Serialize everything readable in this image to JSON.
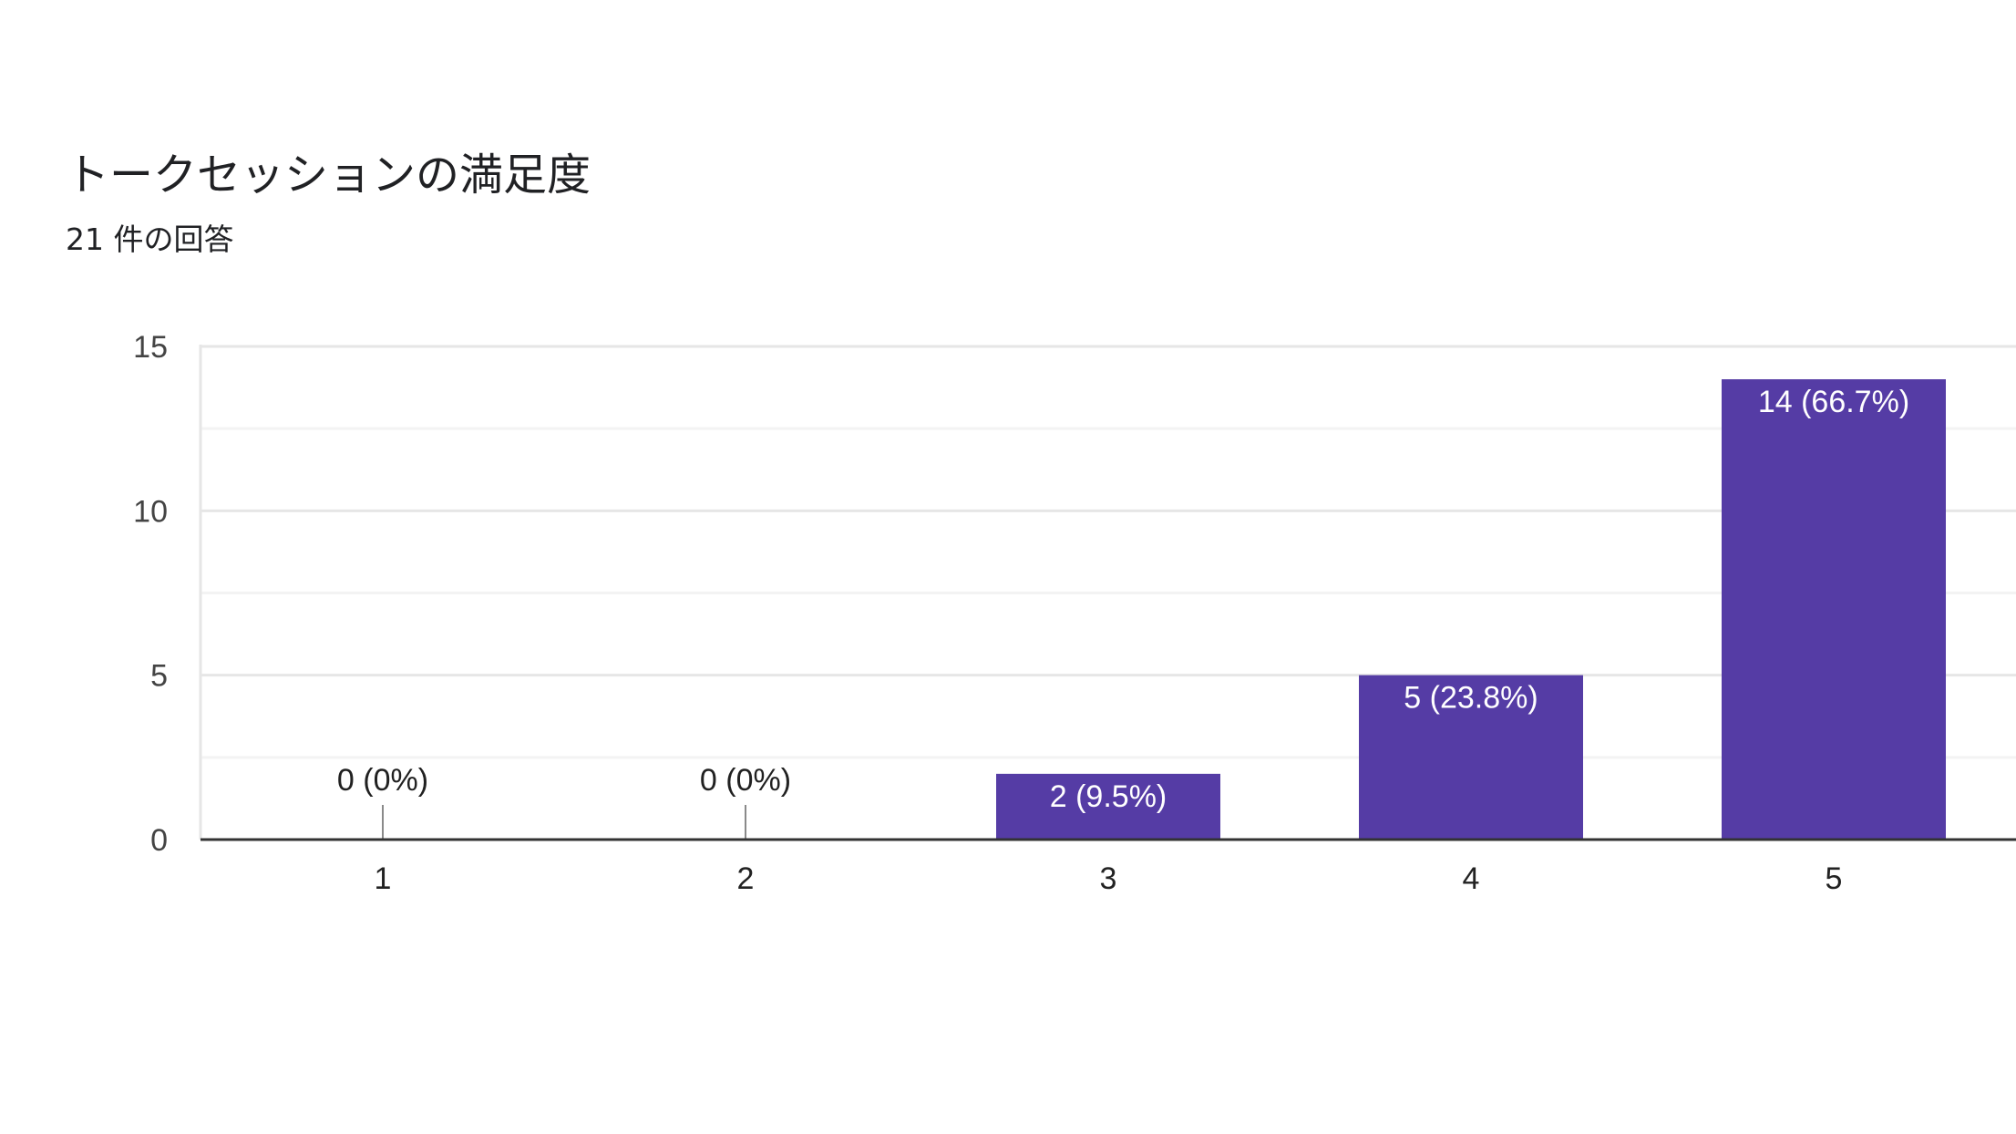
{
  "header": {
    "title": "トークセッションの満足度",
    "response_count": "21 件の回答"
  },
  "colors": {
    "bar": "#553ca5",
    "bar_label": "#ffffff",
    "outside_label": "#212121",
    "axis_line": "#333333",
    "gridline_major": "#e6e6e6",
    "gridline_minor": "#f3f3f3",
    "tick_label": "#444444",
    "zero_stub": "#8a8a8a"
  },
  "chart_data": {
    "type": "bar",
    "title": "トークセッションの満足度",
    "subtitle": "21 件の回答",
    "categories": [
      "1",
      "2",
      "3",
      "4",
      "5"
    ],
    "values": [
      0,
      0,
      2,
      5,
      14
    ],
    "percentages": [
      "0%",
      "0%",
      "9.5%",
      "23.8%",
      "66.7%"
    ],
    "data_labels": [
      "0 (0%)",
      "0 (0%)",
      "2 (9.5%)",
      "5 (23.8%)",
      "14 (66.7%)"
    ],
    "xlabel": "",
    "ylabel": "",
    "ylim": [
      0,
      15
    ],
    "yticks": [
      0,
      5,
      10,
      15
    ],
    "ytick_labels": [
      "0",
      "5",
      "10",
      "15"
    ],
    "minor_gridlines": [
      2.5,
      7.5,
      12.5
    ],
    "grid": true,
    "legend": "none",
    "total_responses": 21
  }
}
